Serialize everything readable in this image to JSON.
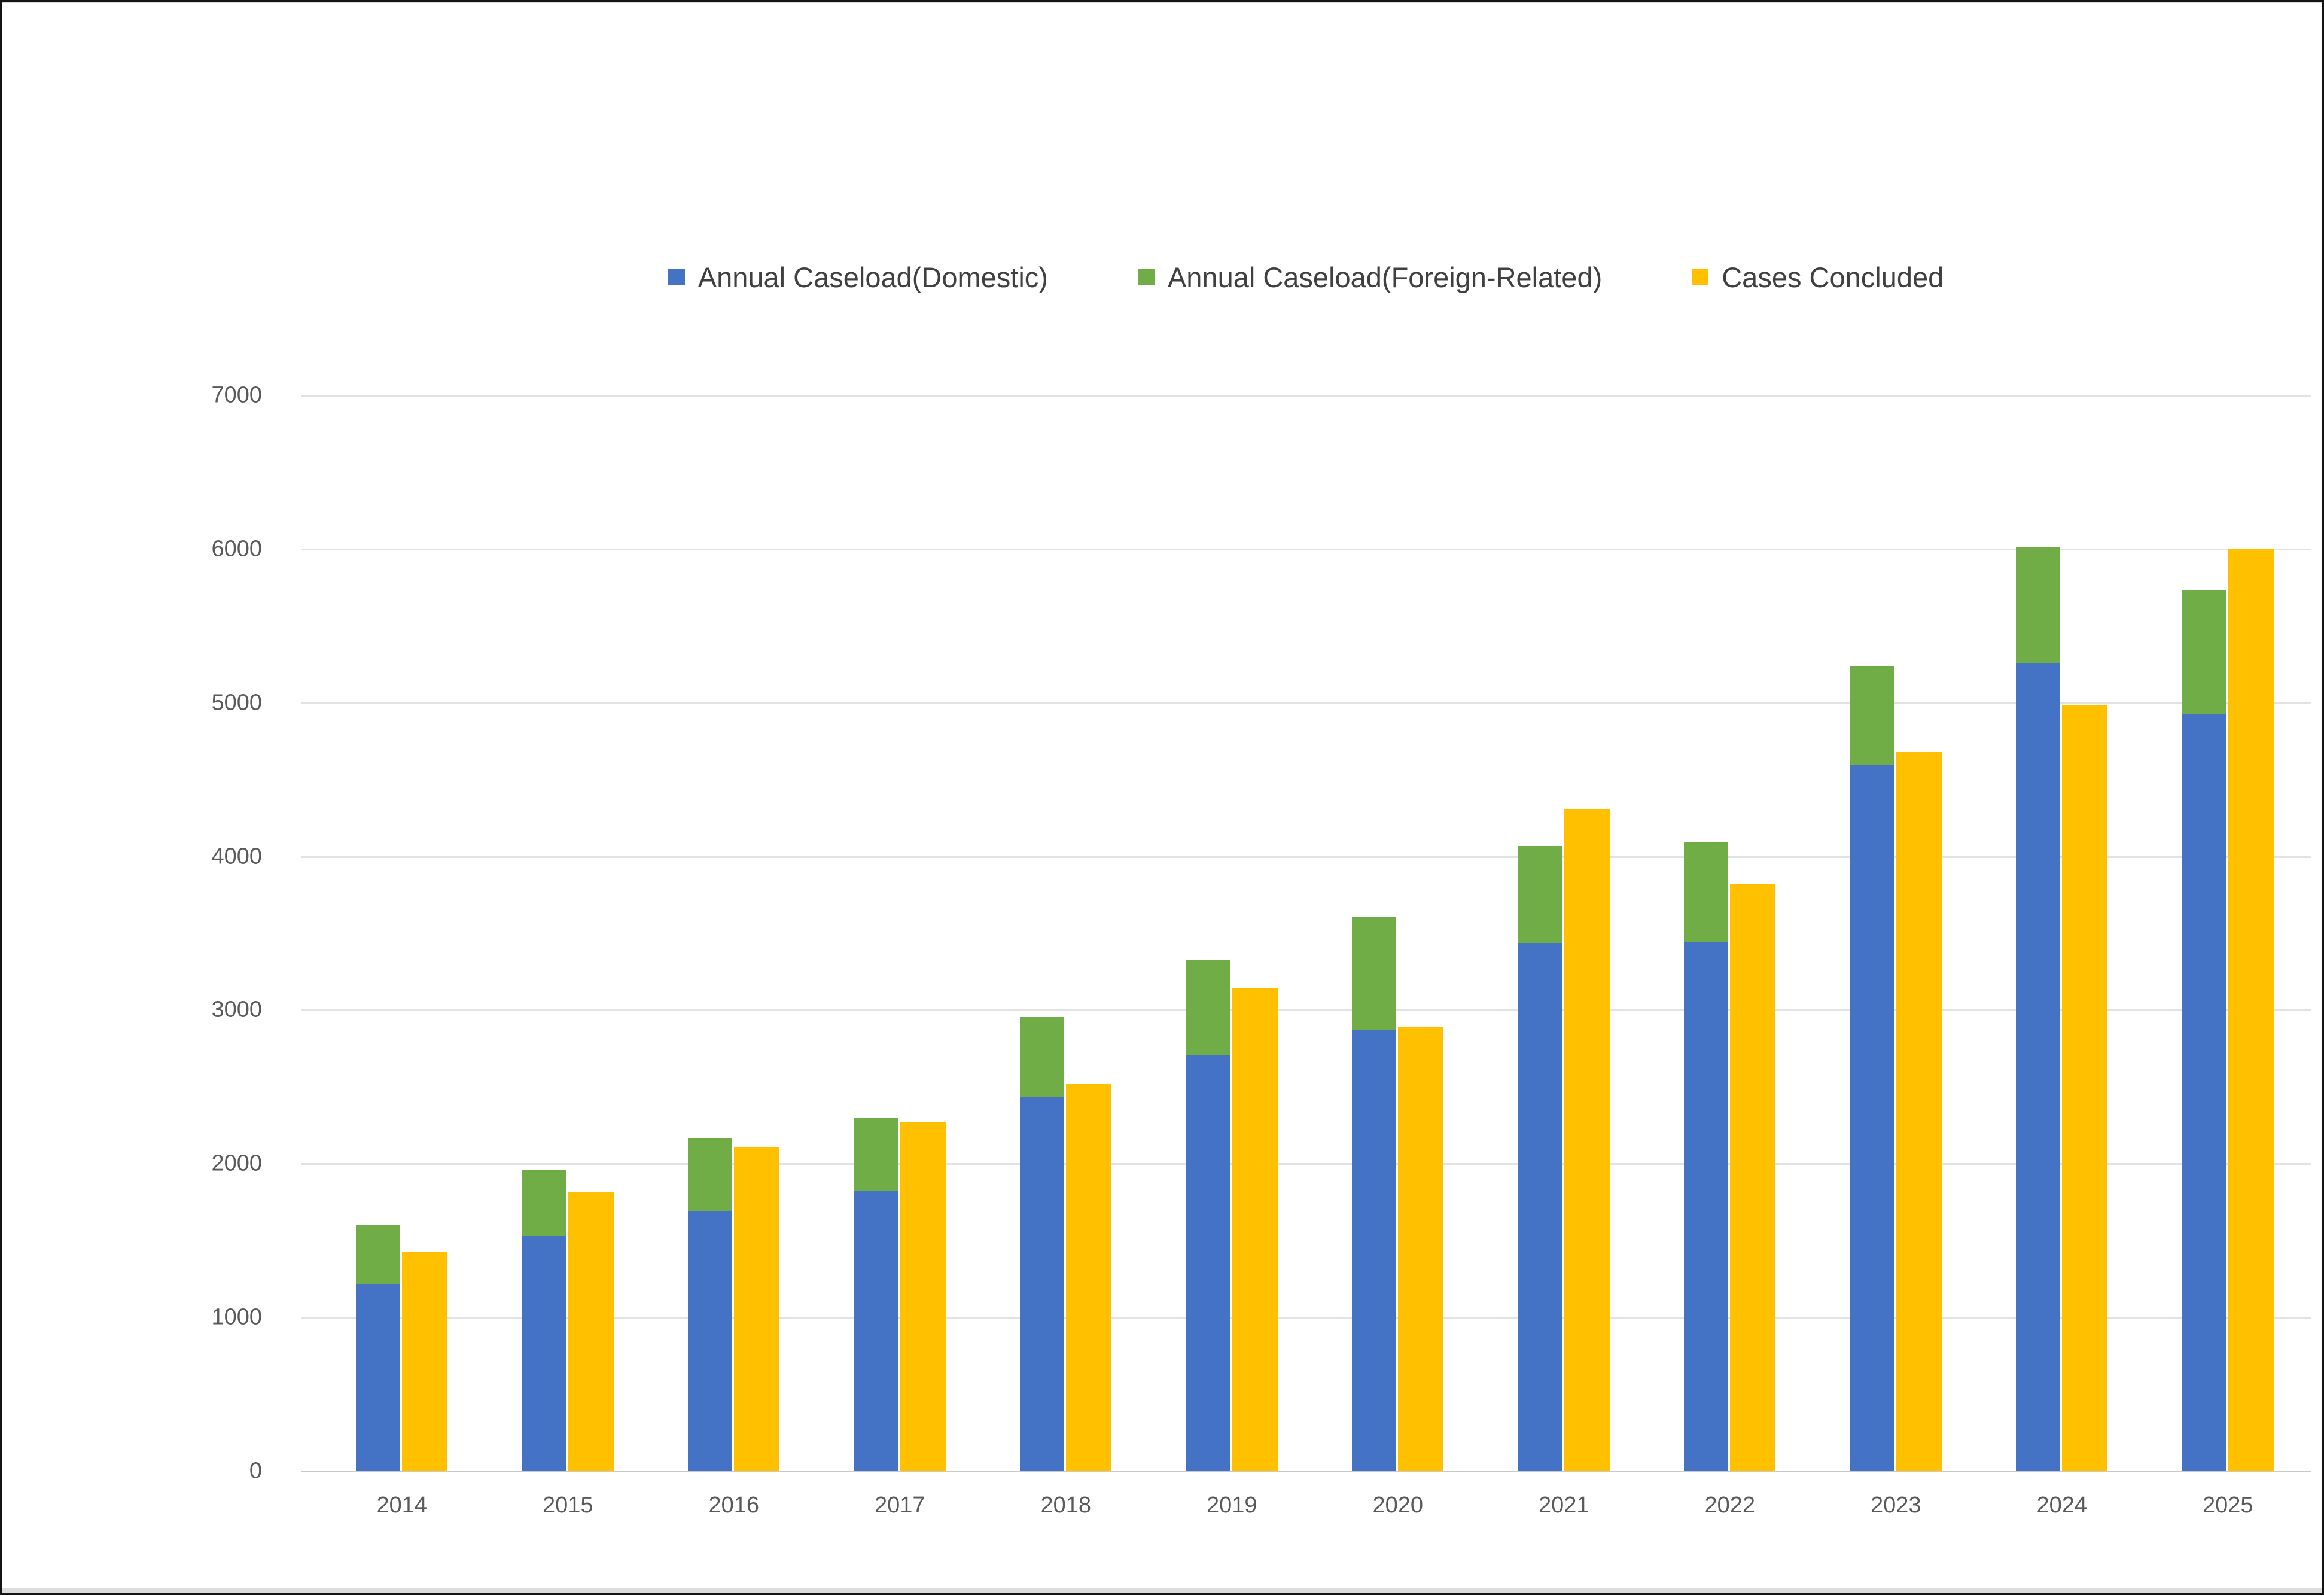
{
  "window": {
    "background": "#ffffff",
    "frame_border_color": "#141414",
    "bottom_band_color": "#dcdcdc"
  },
  "colors": {
    "domestic": "#4472C4",
    "foreign": "#70AD47",
    "concluded": "#FFC000",
    "gridline": "#e2e2e2",
    "axis_line": "#c9c9c9",
    "axis_text": "#595959",
    "legend_text": "#404040"
  },
  "legend": {
    "items": [
      {
        "label": "Annual Caseload(Domestic)",
        "color": "#4472C4"
      },
      {
        "label": "Annual Caseload(Foreign-Related)",
        "color": "#70AD47"
      },
      {
        "label": "Cases Concluded",
        "color": "#FFC000"
      }
    ]
  },
  "chart_data": {
    "type": "bar",
    "title": "",
    "xlabel": "",
    "ylabel": "",
    "categories": [
      "2014",
      "2015",
      "2016",
      "2017",
      "2018",
      "2019",
      "2020",
      "2021",
      "2022",
      "2023",
      "2024",
      "2025"
    ],
    "series": [
      {
        "name": "Annual Caseload(Domestic)",
        "color": "#4472C4",
        "stack": "caseload",
        "values": [
          1220,
          1530,
          1695,
          1825,
          2435,
          2710,
          2875,
          3435,
          3440,
          4595,
          5260,
          4925
        ]
      },
      {
        "name": "Annual Caseload(Foreign-Related)",
        "color": "#70AD47",
        "stack": "caseload",
        "values": [
          380,
          430,
          475,
          475,
          520,
          620,
          735,
          635,
          650,
          640,
          755,
          805
        ]
      },
      {
        "name": "Cases Concluded",
        "color": "#FFC000",
        "stack": null,
        "values": [
          1430,
          1815,
          2105,
          2270,
          2520,
          3140,
          2890,
          4305,
          3820,
          4680,
          4985,
          6000
        ]
      }
    ],
    "stacked_totals": [
      1600,
      1960,
      2170,
      2300,
      2955,
      3330,
      3610,
      4070,
      4090,
      5235,
      6015,
      5730
    ],
    "ylim": [
      0,
      7000
    ],
    "ytick_interval": 1000,
    "yticks": [
      "0",
      "1000",
      "2000",
      "3000",
      "4000",
      "5000",
      "6000",
      "7000"
    ],
    "grid": true,
    "legend_position": "top-center"
  }
}
